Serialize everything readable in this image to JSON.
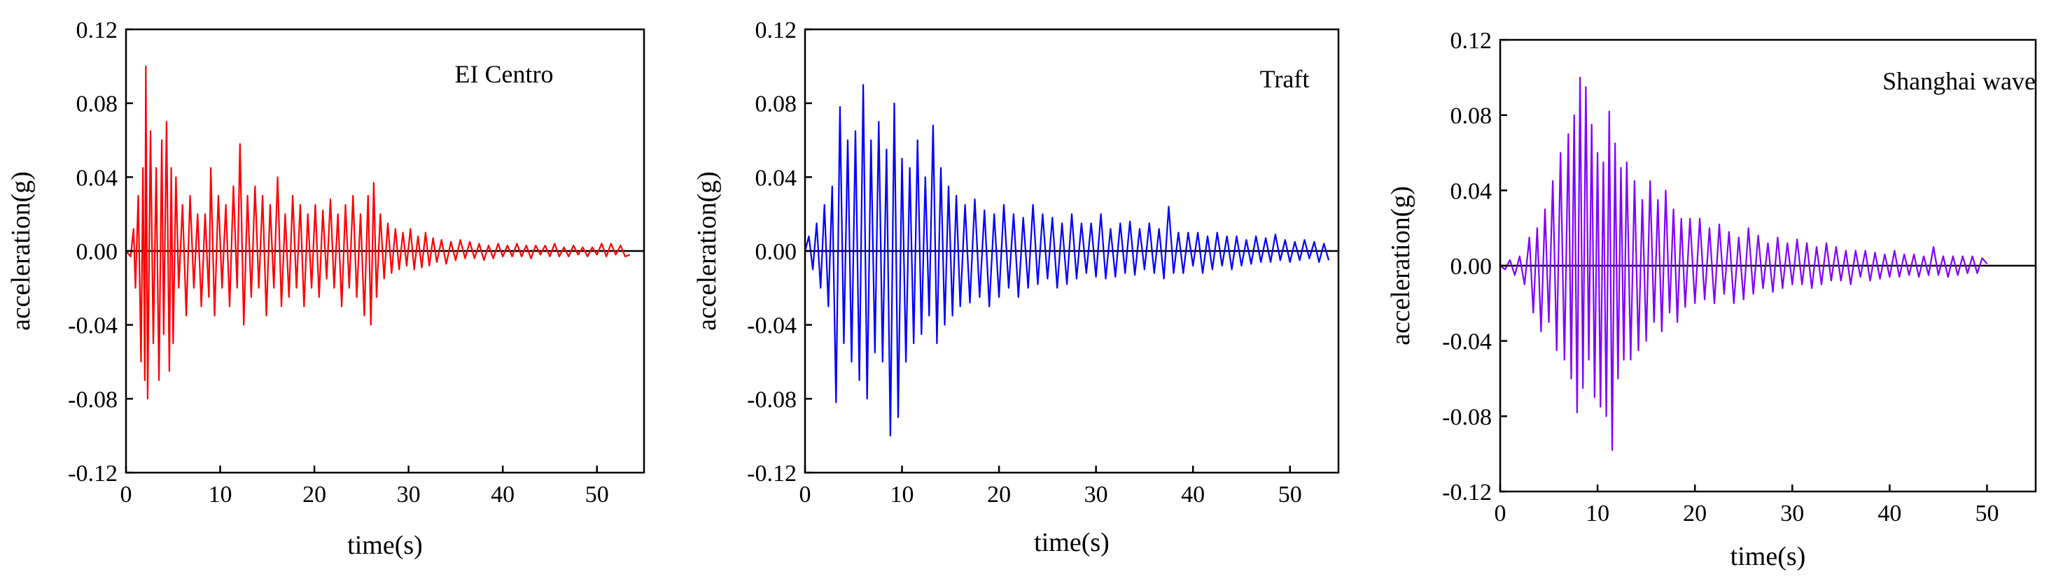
{
  "chart_data": [
    {
      "type": "line",
      "title": "",
      "annotation": "EI Centro",
      "xlabel": "time(s)",
      "ylabel": "acceleration(g)",
      "xlim": [
        0,
        55
      ],
      "ylim": [
        -0.12,
        0.12
      ],
      "xticks": [
        0,
        10,
        20,
        30,
        40,
        50
      ],
      "yticks": [
        -0.12,
        -0.08,
        -0.04,
        0.0,
        0.04,
        0.08,
        0.12
      ],
      "xtick_labels": [
        "0",
        "10",
        "20",
        "30",
        "40",
        "50"
      ],
      "ytick_labels": [
        "-0.12",
        "-0.08",
        "-0.04",
        "0.00",
        "0.04",
        "0.08",
        "0.12"
      ],
      "color": "#ff0000",
      "grid": false,
      "series": [
        {
          "x": [
            0.0,
            0.5,
            0.8,
            1.0,
            1.3,
            1.6,
            1.8,
            2.0,
            2.1,
            2.3,
            2.6,
            2.9,
            3.2,
            3.5,
            3.8,
            4.0,
            4.3,
            4.6,
            4.8,
            5.0,
            5.3,
            5.6,
            6.0,
            6.4,
            6.8,
            7.2,
            7.6,
            8.0,
            8.4,
            8.8,
            9.0,
            9.4,
            9.8,
            10.2,
            10.6,
            11.0,
            11.4,
            11.8,
            12.1,
            12.5,
            12.9,
            13.3,
            13.7,
            14.1,
            14.5,
            14.9,
            15.3,
            15.7,
            16.1,
            16.5,
            16.9,
            17.3,
            17.7,
            18.1,
            18.5,
            18.9,
            19.3,
            19.7,
            20.1,
            20.5,
            20.9,
            21.3,
            21.7,
            22.1,
            22.5,
            22.9,
            23.3,
            23.7,
            24.1,
            24.5,
            24.9,
            25.3,
            25.7,
            26.0,
            26.3,
            26.6,
            27.0,
            27.4,
            27.8,
            28.2,
            28.6,
            29.0,
            29.4,
            29.8,
            30.2,
            30.6,
            31.0,
            31.4,
            31.8,
            32.2,
            32.6,
            33.0,
            33.5,
            34.0,
            34.5,
            35.0,
            35.5,
            36.0,
            36.5,
            37.0,
            37.5,
            38.0,
            38.5,
            39.0,
            39.5,
            40.0,
            40.5,
            41.0,
            41.5,
            42.0,
            42.5,
            43.0,
            43.5,
            44.0,
            44.5,
            45.0,
            45.5,
            46.0,
            46.5,
            47.0,
            47.5,
            48.0,
            48.5,
            49.0,
            49.5,
            50.0,
            50.5,
            51.0,
            51.5,
            52.0,
            52.5,
            53.0,
            53.5
          ],
          "y": [
            0.0,
            -0.003,
            0.012,
            -0.02,
            0.03,
            -0.06,
            0.045,
            -0.07,
            0.1,
            -0.08,
            0.065,
            -0.05,
            0.045,
            -0.07,
            0.06,
            -0.045,
            0.07,
            -0.065,
            0.045,
            -0.05,
            0.04,
            -0.02,
            0.025,
            -0.035,
            0.03,
            -0.02,
            0.02,
            -0.03,
            0.02,
            -0.025,
            0.045,
            -0.035,
            0.03,
            -0.02,
            0.025,
            -0.03,
            0.035,
            -0.02,
            0.058,
            -0.04,
            0.03,
            -0.025,
            0.035,
            -0.02,
            0.03,
            -0.035,
            0.025,
            -0.02,
            0.04,
            -0.03,
            0.02,
            -0.025,
            0.03,
            -0.02,
            0.025,
            -0.03,
            0.02,
            -0.02,
            0.025,
            -0.025,
            0.022,
            -0.015,
            0.028,
            -0.02,
            0.02,
            -0.03,
            0.025,
            -0.02,
            0.03,
            -0.025,
            0.02,
            -0.035,
            0.03,
            -0.04,
            0.037,
            -0.025,
            0.02,
            -0.015,
            0.015,
            -0.012,
            0.012,
            -0.01,
            0.01,
            -0.008,
            0.012,
            -0.01,
            0.008,
            -0.009,
            0.01,
            -0.008,
            0.007,
            -0.006,
            0.006,
            -0.007,
            0.005,
            -0.005,
            0.006,
            -0.004,
            0.005,
            -0.004,
            0.004,
            -0.005,
            0.003,
            -0.004,
            0.004,
            -0.003,
            0.003,
            -0.003,
            0.004,
            -0.003,
            0.003,
            -0.004,
            0.003,
            -0.002,
            0.003,
            -0.003,
            0.004,
            -0.003,
            0.002,
            -0.003,
            0.003,
            -0.002,
            0.002,
            -0.003,
            0.002,
            -0.002,
            0.004,
            -0.003,
            0.004,
            -0.002,
            0.003,
            -0.003,
            -0.002
          ]
        }
      ]
    },
    {
      "type": "line",
      "title": "",
      "annotation": "Traft",
      "xlabel": "time(s)",
      "ylabel": "acceleration(g)",
      "xlim": [
        0,
        55
      ],
      "ylim": [
        -0.12,
        0.12
      ],
      "xticks": [
        0,
        10,
        20,
        30,
        40,
        50
      ],
      "yticks": [
        -0.12,
        -0.08,
        -0.04,
        0.0,
        0.04,
        0.08,
        0.12
      ],
      "xtick_labels": [
        "0",
        "10",
        "20",
        "30",
        "40",
        "50"
      ],
      "ytick_labels": [
        "-0.12",
        "-0.08",
        "-0.04",
        "0.00",
        "0.04",
        "0.08",
        "0.12"
      ],
      "color": "#0000ff",
      "grid": false,
      "series": [
        {
          "x": [
            0.0,
            0.4,
            0.8,
            1.2,
            1.6,
            2.0,
            2.4,
            2.8,
            3.2,
            3.6,
            4.0,
            4.4,
            4.8,
            5.2,
            5.6,
            6.0,
            6.4,
            6.8,
            7.2,
            7.6,
            8.0,
            8.4,
            8.8,
            9.2,
            9.6,
            10.0,
            10.4,
            10.8,
            11.2,
            11.6,
            12.0,
            12.4,
            12.8,
            13.2,
            13.6,
            14.0,
            14.4,
            14.8,
            15.2,
            15.6,
            16.0,
            16.5,
            17.0,
            17.5,
            18.0,
            18.5,
            19.0,
            19.5,
            20.0,
            20.5,
            21.0,
            21.5,
            22.0,
            22.5,
            23.0,
            23.5,
            24.0,
            24.5,
            25.0,
            25.5,
            26.0,
            26.5,
            27.0,
            27.5,
            28.0,
            28.5,
            29.0,
            29.5,
            30.0,
            30.5,
            31.0,
            31.5,
            32.0,
            32.5,
            33.0,
            33.5,
            34.0,
            34.5,
            35.0,
            35.5,
            36.0,
            36.5,
            37.0,
            37.5,
            38.0,
            38.5,
            39.0,
            39.5,
            40.0,
            40.5,
            41.0,
            41.5,
            42.0,
            42.5,
            43.0,
            43.5,
            44.0,
            44.5,
            45.0,
            45.5,
            46.0,
            46.5,
            47.0,
            47.5,
            48.0,
            48.5,
            49.0,
            49.5,
            50.0,
            50.5,
            51.0,
            51.5,
            52.0,
            52.5,
            53.0,
            53.5,
            54.0
          ],
          "y": [
            0.0,
            0.008,
            -0.01,
            0.015,
            -0.02,
            0.025,
            -0.03,
            0.035,
            -0.082,
            0.078,
            -0.05,
            0.06,
            -0.06,
            0.065,
            -0.07,
            0.09,
            -0.08,
            0.06,
            -0.055,
            0.07,
            -0.06,
            0.055,
            -0.1,
            0.08,
            -0.09,
            0.05,
            -0.06,
            0.045,
            -0.05,
            0.06,
            -0.045,
            0.04,
            -0.035,
            0.068,
            -0.05,
            0.045,
            -0.04,
            0.035,
            -0.035,
            0.03,
            -0.03,
            0.025,
            -0.028,
            0.028,
            -0.025,
            0.022,
            -0.03,
            0.02,
            -0.025,
            0.025,
            -0.02,
            0.02,
            -0.025,
            0.018,
            -0.02,
            0.025,
            -0.018,
            0.02,
            -0.015,
            0.018,
            -0.02,
            0.015,
            -0.018,
            0.02,
            -0.015,
            0.015,
            -0.012,
            0.015,
            -0.014,
            0.02,
            -0.015,
            0.012,
            -0.014,
            0.015,
            -0.012,
            0.016,
            -0.013,
            0.012,
            -0.01,
            0.015,
            -0.012,
            0.012,
            -0.015,
            0.024,
            -0.012,
            0.01,
            -0.012,
            0.01,
            -0.008,
            0.01,
            -0.012,
            0.008,
            -0.01,
            0.01,
            -0.008,
            0.008,
            -0.01,
            0.008,
            -0.008,
            0.006,
            -0.007,
            0.008,
            -0.006,
            0.007,
            -0.006,
            0.009,
            -0.005,
            0.006,
            -0.006,
            0.005,
            -0.005,
            0.006,
            -0.004,
            0.005,
            -0.006,
            0.004,
            -0.005
          ]
        }
      ]
    },
    {
      "type": "line",
      "title": "",
      "annotation": "Shanghai wave",
      "xlabel": "time(s)",
      "ylabel": "acceleration(g)",
      "xlim": [
        0,
        55
      ],
      "ylim": [
        -0.12,
        0.12
      ],
      "xticks": [
        0,
        10,
        20,
        30,
        40,
        50
      ],
      "yticks": [
        -0.12,
        -0.08,
        -0.04,
        0.0,
        0.04,
        0.08,
        0.12
      ],
      "xtick_labels": [
        "0",
        "10",
        "20",
        "30",
        "40",
        "50"
      ],
      "ytick_labels": [
        "-0.12",
        "-0.08",
        "-0.04",
        "0.00",
        "0.04",
        "0.08",
        "0.12"
      ],
      "color": "#8000ff",
      "grid": false,
      "series": [
        {
          "x": [
            0.0,
            0.5,
            1.0,
            1.5,
            2.0,
            2.5,
            3.0,
            3.4,
            3.8,
            4.2,
            4.6,
            5.0,
            5.4,
            5.8,
            6.2,
            6.6,
            7.0,
            7.3,
            7.6,
            7.9,
            8.2,
            8.5,
            8.8,
            9.1,
            9.4,
            9.7,
            10.0,
            10.3,
            10.6,
            10.9,
            11.2,
            11.5,
            11.8,
            12.1,
            12.4,
            12.7,
            13.0,
            13.4,
            13.8,
            14.2,
            14.6,
            15.0,
            15.4,
            15.8,
            16.2,
            16.6,
            17.0,
            17.4,
            17.8,
            18.2,
            18.6,
            19.0,
            19.5,
            20.0,
            20.5,
            21.0,
            21.5,
            22.0,
            22.5,
            23.0,
            23.5,
            24.0,
            24.5,
            25.0,
            25.5,
            26.0,
            26.5,
            27.0,
            27.5,
            28.0,
            28.5,
            29.0,
            29.5,
            30.0,
            30.5,
            31.0,
            31.5,
            32.0,
            32.5,
            33.0,
            33.5,
            34.0,
            34.5,
            35.0,
            35.5,
            36.0,
            36.5,
            37.0,
            37.5,
            38.0,
            38.5,
            39.0,
            39.5,
            40.0,
            40.5,
            41.0,
            41.5,
            42.0,
            42.5,
            43.0,
            43.5,
            44.0,
            44.5,
            45.0,
            45.5,
            46.0,
            46.5,
            47.0,
            47.5,
            48.0,
            48.5,
            49.0,
            49.5,
            50.0
          ],
          "y": [
            0.0,
            -0.002,
            0.003,
            -0.005,
            0.005,
            -0.01,
            0.015,
            -0.025,
            0.02,
            -0.035,
            0.03,
            -0.03,
            0.045,
            -0.045,
            0.06,
            -0.05,
            0.07,
            -0.06,
            0.08,
            -0.078,
            0.1,
            -0.065,
            0.095,
            -0.05,
            0.075,
            -0.07,
            0.06,
            -0.075,
            0.055,
            -0.08,
            0.082,
            -0.098,
            0.065,
            -0.06,
            0.052,
            -0.05,
            0.055,
            -0.05,
            0.045,
            -0.045,
            0.035,
            -0.04,
            0.045,
            -0.03,
            0.035,
            -0.035,
            0.04,
            -0.025,
            0.03,
            -0.03,
            0.025,
            -0.022,
            0.025,
            -0.02,
            0.025,
            -0.018,
            0.02,
            -0.02,
            0.022,
            -0.015,
            0.018,
            -0.02,
            0.015,
            -0.018,
            0.02,
            -0.015,
            0.016,
            -0.012,
            0.012,
            -0.014,
            0.015,
            -0.012,
            0.012,
            -0.01,
            0.014,
            -0.01,
            0.012,
            -0.012,
            0.01,
            -0.01,
            0.012,
            -0.008,
            0.01,
            -0.008,
            0.008,
            -0.01,
            0.008,
            -0.006,
            0.008,
            -0.008,
            0.007,
            -0.007,
            0.006,
            -0.006,
            0.008,
            -0.006,
            0.006,
            -0.005,
            0.006,
            -0.006,
            0.005,
            -0.005,
            0.01,
            -0.005,
            0.005,
            -0.006,
            0.005,
            -0.005,
            0.005,
            -0.004,
            0.005,
            -0.004,
            0.004,
            0.001
          ]
        }
      ]
    }
  ]
}
